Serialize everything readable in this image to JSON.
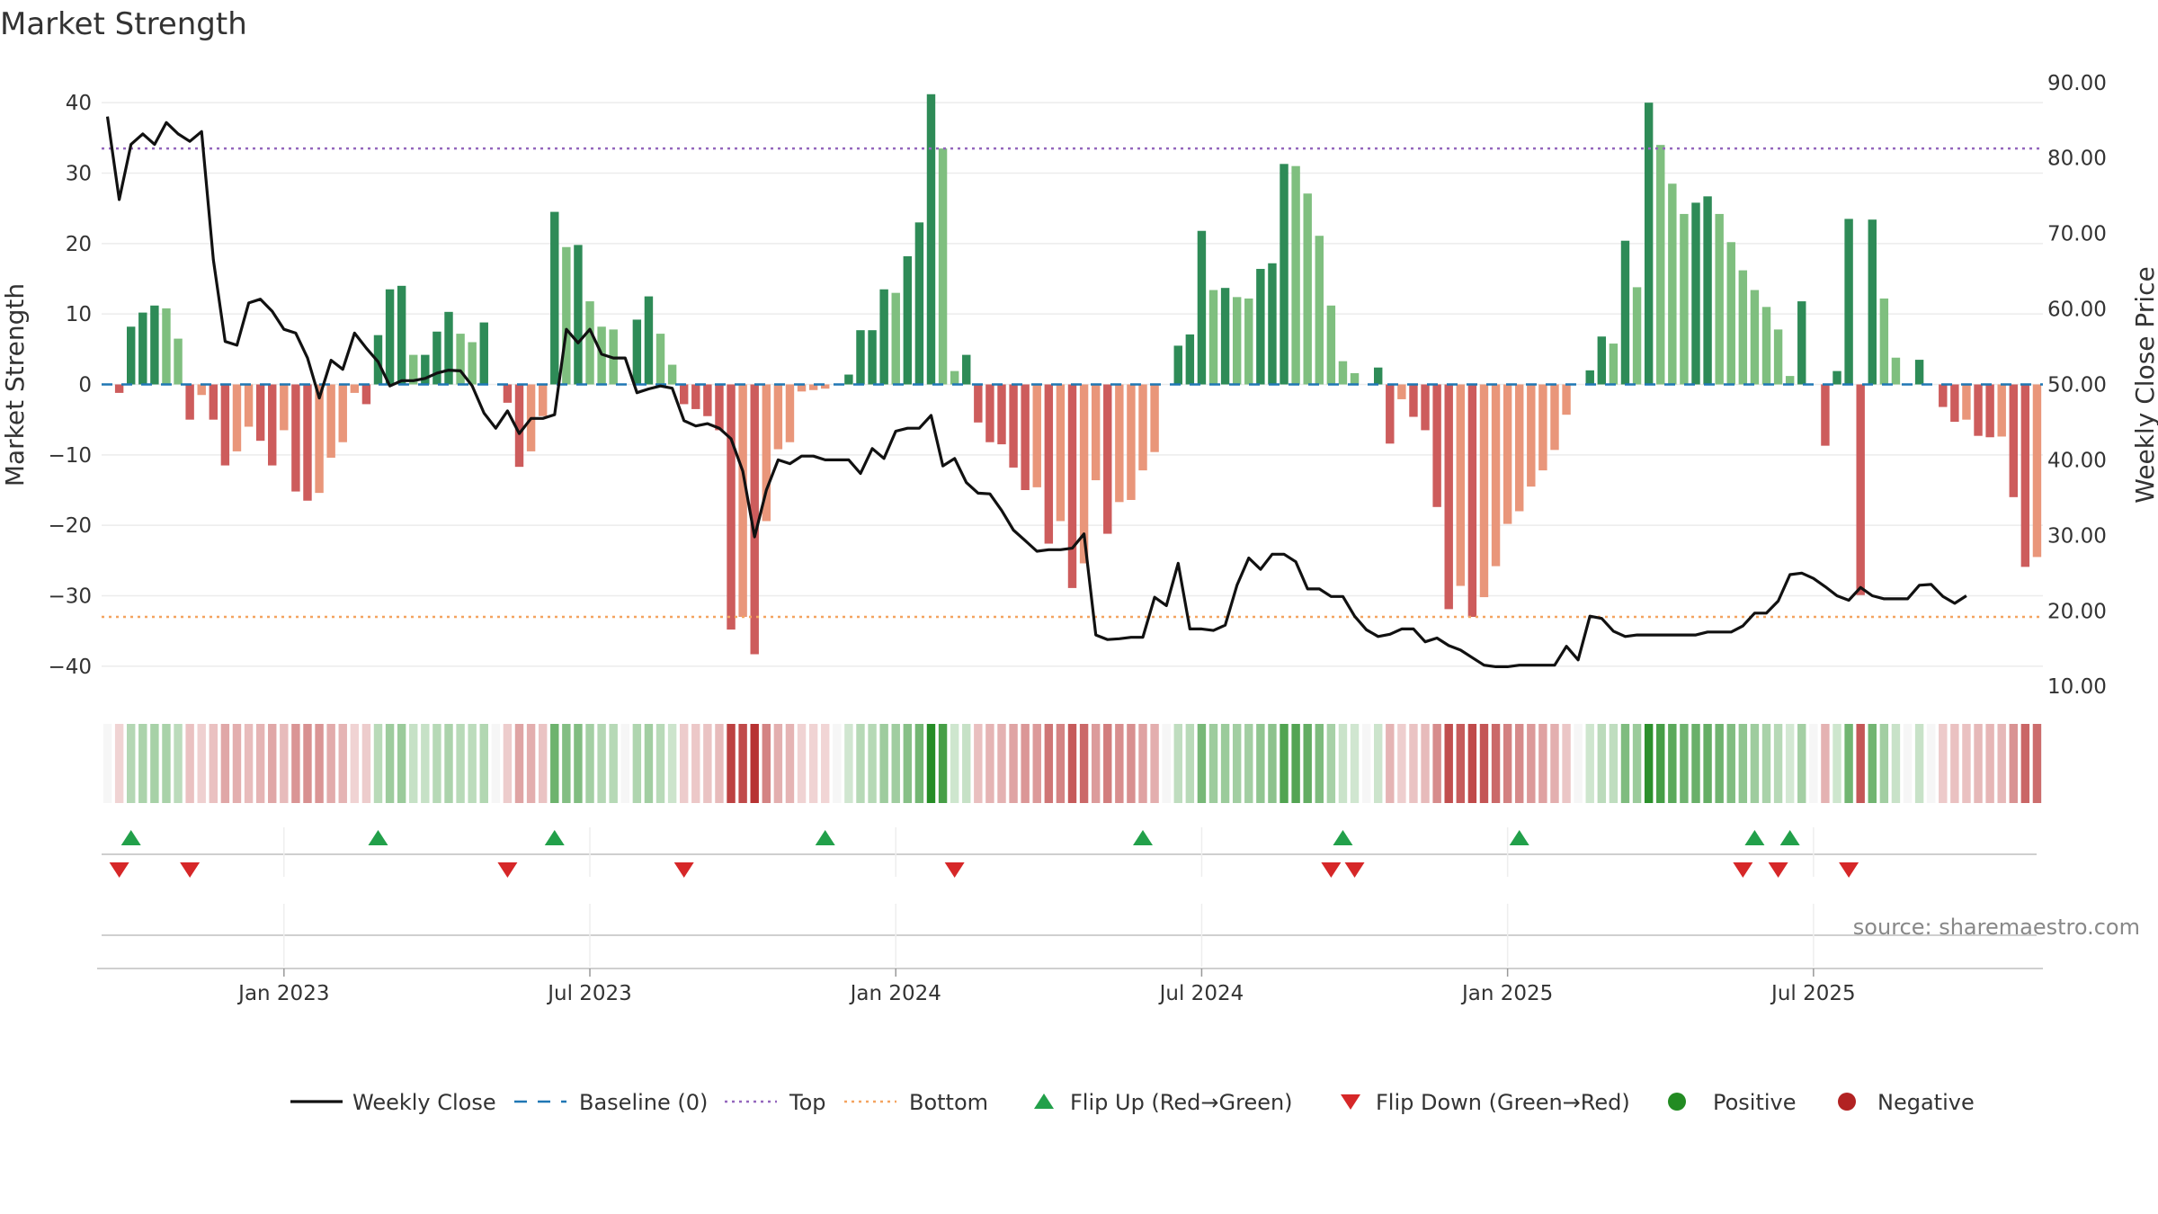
{
  "chart_data": {
    "type": "bar",
    "title": "Market Strength",
    "ylabel": "Market Strength",
    "y2label": "Weekly Close Price",
    "ylim": [
      -45,
      45
    ],
    "y2lim": [
      8,
      92
    ],
    "y_ticks": [
      "40",
      "30",
      "20",
      "10",
      "0",
      "−10",
      "−20",
      "−30",
      "−40"
    ],
    "y2_ticks": [
      "90.00",
      "80.00",
      "70.00",
      "60.00",
      "50.00",
      "40.00",
      "30.00",
      "20.00",
      "10.00"
    ],
    "x_ticks": [
      "Jan 2023",
      "Jul 2023",
      "Jan 2024",
      "Jul 2024",
      "Jan 2025",
      "Jul 2025"
    ],
    "x_tick_weeks": [
      15,
      41,
      67,
      93,
      119,
      145
    ],
    "top_line": 33.5,
    "bottom_line": -33.0,
    "colors": {
      "pos_strong": "#2e8b57",
      "pos_light": "#7fbf7f",
      "neg_strong": "#cd5c5c",
      "neg_light": "#e9967a",
      "close": "#111111",
      "baseline": "#1f77b4",
      "top": "#9467bd",
      "bottom": "#f4a460",
      "flip_up": "#22a04a",
      "flip_down": "#d62728",
      "positive": "#228b22",
      "negative": "#b22222"
    },
    "series": [
      {
        "name": "Market Strength",
        "values": [
          0,
          -1.2,
          8.2,
          10.2,
          11.2,
          10.8,
          6.5,
          -5,
          -1.5,
          -5,
          -11.5,
          -9.5,
          -6,
          -8,
          -11.5,
          -6.5,
          -15.2,
          -16.5,
          -15.4,
          -10.4,
          -8.2,
          -1.2,
          -2.8,
          7,
          13.5,
          14,
          4.2,
          4.2,
          7.5,
          10.3,
          7.2,
          6,
          8.8,
          0,
          -2.6,
          -11.7,
          -9.5,
          -4.5,
          24.5,
          19.5,
          19.8,
          11.8,
          8.2,
          7.8,
          0,
          9.2,
          12.5,
          7.2,
          2.8,
          -2.8,
          -3.5,
          -4.5,
          -6.5,
          -34.8,
          -33,
          -38.3,
          -19.4,
          -9.2,
          -8.2,
          -1,
          -0.8,
          -0.6,
          0,
          1.4,
          7.7,
          7.7,
          13.5,
          13,
          18.2,
          23,
          41.2,
          33.5,
          1.9,
          4.2,
          -5.4,
          -8.2,
          -8.5,
          -11.8,
          -15,
          -14.6,
          -22.6,
          -19.4,
          -28.9,
          -25.4,
          -13.6,
          -21.2,
          -16.7,
          -16.4,
          -12.2,
          -9.6,
          0,
          5.5,
          7.1,
          21.8,
          13.4,
          13.7,
          12.4,
          12.2,
          16.4,
          17.2,
          31.3,
          31,
          27.1,
          21.1,
          11.2,
          3.3,
          1.6,
          0,
          2.4,
          -8.4,
          -2.1,
          -4.6,
          -6.5,
          -17.4,
          -31.9,
          -28.6,
          -33,
          -30.2,
          -25.8,
          -19.8,
          -18,
          -14.5,
          -12.2,
          -9.3,
          -4.3,
          0,
          2,
          6.8,
          5.8,
          20.4,
          13.8,
          40,
          34,
          28.5,
          24.2,
          25.8,
          26.7,
          24.2,
          20.2,
          16.2,
          13.4,
          11,
          7.8,
          1.2,
          11.8,
          0,
          -8.7,
          1.9,
          23.5,
          -29.9,
          23.4,
          12.2,
          3.8,
          0,
          3.5,
          0,
          -3.2,
          -5.3,
          -5,
          -7.3,
          -7.5,
          -7.4,
          -16,
          -25.9,
          -24.5
        ]
      },
      {
        "name": "Weekly Close",
        "values": [
          85.5,
          74.5,
          81.8,
          83.2,
          81.8,
          84.7,
          83.2,
          82.2,
          83.5,
          66.5,
          55.7,
          55.2,
          60.8,
          61.3,
          59.7,
          57.3,
          56.8,
          53.5,
          48.2,
          53.2,
          52,
          56.8,
          54.8,
          53,
          49.8,
          50.5,
          50.5,
          50.8,
          51.5,
          51.9,
          51.8,
          49.8,
          46.2,
          44.2,
          46.5,
          43.5,
          45.5,
          45.5,
          46,
          57.3,
          55.5,
          57.3,
          54,
          53.5,
          53.5,
          48.9,
          49.4,
          49.8,
          49.5,
          45.2,
          44.5,
          44.8,
          44.2,
          42.8,
          38.5,
          29.8,
          36,
          40,
          39.5,
          40.5,
          40.5,
          40,
          40,
          40,
          38.2,
          41.5,
          40.2,
          43.8,
          44.2,
          44.2,
          45.9,
          39.2,
          40.2,
          37,
          35.6,
          35.5,
          33.3,
          30.7,
          29.3,
          27.9,
          28.1,
          28.1,
          28.3,
          30.2,
          16.8,
          16.2,
          16.3,
          16.5,
          16.5,
          21.8,
          20.7,
          26.3,
          17.6,
          17.6,
          17.4,
          18.1,
          23.4,
          27,
          25.5,
          27.5,
          27.5,
          26.5,
          22.9,
          22.9,
          21.9,
          21.9,
          19.3,
          17.5,
          16.6,
          16.9,
          17.6,
          17.6,
          15.9,
          16.4,
          15.4,
          14.8,
          13.8,
          12.8,
          12.6,
          12.6,
          12.8,
          12.8,
          12.8,
          12.8,
          15.3,
          13.5,
          19.3,
          19,
          17.3,
          16.6,
          16.8,
          16.8,
          16.8,
          16.8,
          16.8,
          16.8,
          17.2,
          17.2,
          17.2,
          18,
          19.7,
          19.7,
          21.3,
          24.8,
          25,
          24.3,
          23.2,
          22,
          21.4,
          23.1,
          22,
          21.6,
          21.6,
          21.6,
          23.4,
          23.5,
          21.9,
          21,
          22
        ]
      }
    ],
    "heat_strip": [
      0,
      -1.2,
      8.2,
      10.2,
      11.2,
      10.8,
      6.5,
      -5,
      -1.5,
      -5,
      -11.5,
      -9.5,
      -6,
      -8,
      -11.5,
      -6.5,
      -15.2,
      -16.5,
      -15.4,
      -10.4,
      -8.2,
      -1.2,
      -2.8,
      7,
      13.5,
      14,
      4.2,
      4.2,
      7.5,
      10.3,
      7.2,
      6,
      8.8,
      0,
      -2.6,
      -11.7,
      -9.5,
      -4.5,
      24.5,
      19.5,
      19.8,
      11.8,
      8.2,
      7.8,
      0,
      9.2,
      12.5,
      7.2,
      2.8,
      -2.8,
      -3.5,
      -4.5,
      -6.5,
      -34.8,
      -33,
      -38.3,
      -19.4,
      -9.2,
      -8.2,
      -1,
      -0.8,
      -0.6,
      0,
      1.4,
      7.7,
      7.7,
      13.5,
      13,
      18.2,
      23,
      41.2,
      33.5,
      1.9,
      4.2,
      -5.4,
      -8.2,
      -8.5,
      -11.8,
      -15,
      -14.6,
      -22.6,
      -19.4,
      -28.9,
      -25.4,
      -13.6,
      -21.2,
      -16.7,
      -16.4,
      -12.2,
      -9.6,
      0,
      5.5,
      7.1,
      21.8,
      13.4,
      13.7,
      12.4,
      12.2,
      16.4,
      17.2,
      31.3,
      31,
      27.1,
      21.1,
      11.2,
      3.3,
      1.6,
      0,
      2.4,
      -8.4,
      -2.1,
      -4.6,
      -6.5,
      -17.4,
      -31.9,
      -28.6,
      -33,
      -30.2,
      -25.8,
      -19.8,
      -18,
      -14.5,
      -12.2,
      -9.3,
      -4.3,
      0,
      2,
      6.8,
      5.8,
      20.4,
      13.8,
      40,
      34,
      28.5,
      24.2,
      25.8,
      26.7,
      24.2,
      20.2,
      16.2,
      13.4,
      11,
      7.8,
      1.2,
      11.8,
      0,
      -8.7,
      1.9,
      23.5,
      -29.9,
      23.4,
      12.2,
      3.8,
      0,
      3.5,
      0,
      -3.2,
      -5.3,
      -5,
      -7.3,
      -7.5,
      -7.4,
      -16,
      -25.9,
      -24.5
    ],
    "flip_up_weeks": [
      2,
      23,
      38,
      61,
      88,
      105,
      120,
      140,
      143
    ],
    "flip_down_weeks": [
      1,
      7,
      34,
      49,
      72,
      104,
      106,
      139,
      142,
      148
    ],
    "legend": [
      {
        "label": "Weekly Close",
        "marker": "line",
        "color": "#111111"
      },
      {
        "label": "Baseline (0)",
        "marker": "dash",
        "color": "#1f77b4"
      },
      {
        "label": "Top",
        "marker": "dot",
        "color": "#9467bd"
      },
      {
        "label": "Bottom",
        "marker": "dot",
        "color": "#f4a460"
      },
      {
        "label": "Flip Up (Red→Green)",
        "marker": "tri-up",
        "color": "#22a04a"
      },
      {
        "label": "Flip Down (Green→Red)",
        "marker": "tri-down",
        "color": "#d62728"
      },
      {
        "label": "Positive",
        "marker": "circle",
        "color": "#228b22"
      },
      {
        "label": "Negative",
        "marker": "circle",
        "color": "#b22222"
      }
    ],
    "source": "source: sharemaestro.com"
  }
}
